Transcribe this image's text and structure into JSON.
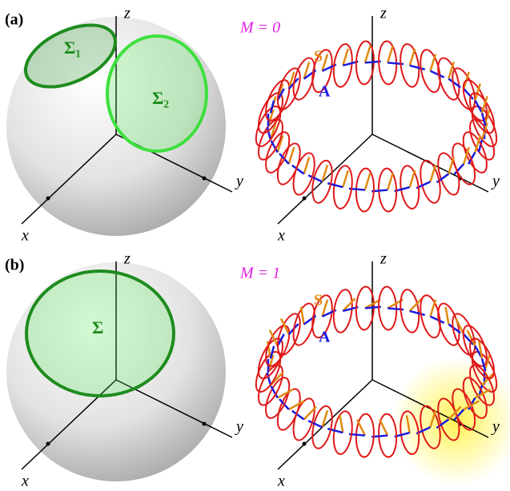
{
  "panels": [
    {
      "label": "(a)",
      "left_axes": [
        "z",
        "y",
        "x"
      ],
      "loops": [
        "Σ₁",
        "Σ₂"
      ],
      "m_label": "M = 0",
      "right_axes": [
        "z",
        "y",
        "x"
      ],
      "s_label": "S",
      "a_label": "A"
    },
    {
      "label": "(b)",
      "left_axes": [
        "z",
        "y",
        "x"
      ],
      "loops": [
        "Σ"
      ],
      "m_label": "M = 1",
      "right_axes": [
        "z",
        "y",
        "x"
      ],
      "s_label": "S",
      "a_label": "A"
    }
  ]
}
